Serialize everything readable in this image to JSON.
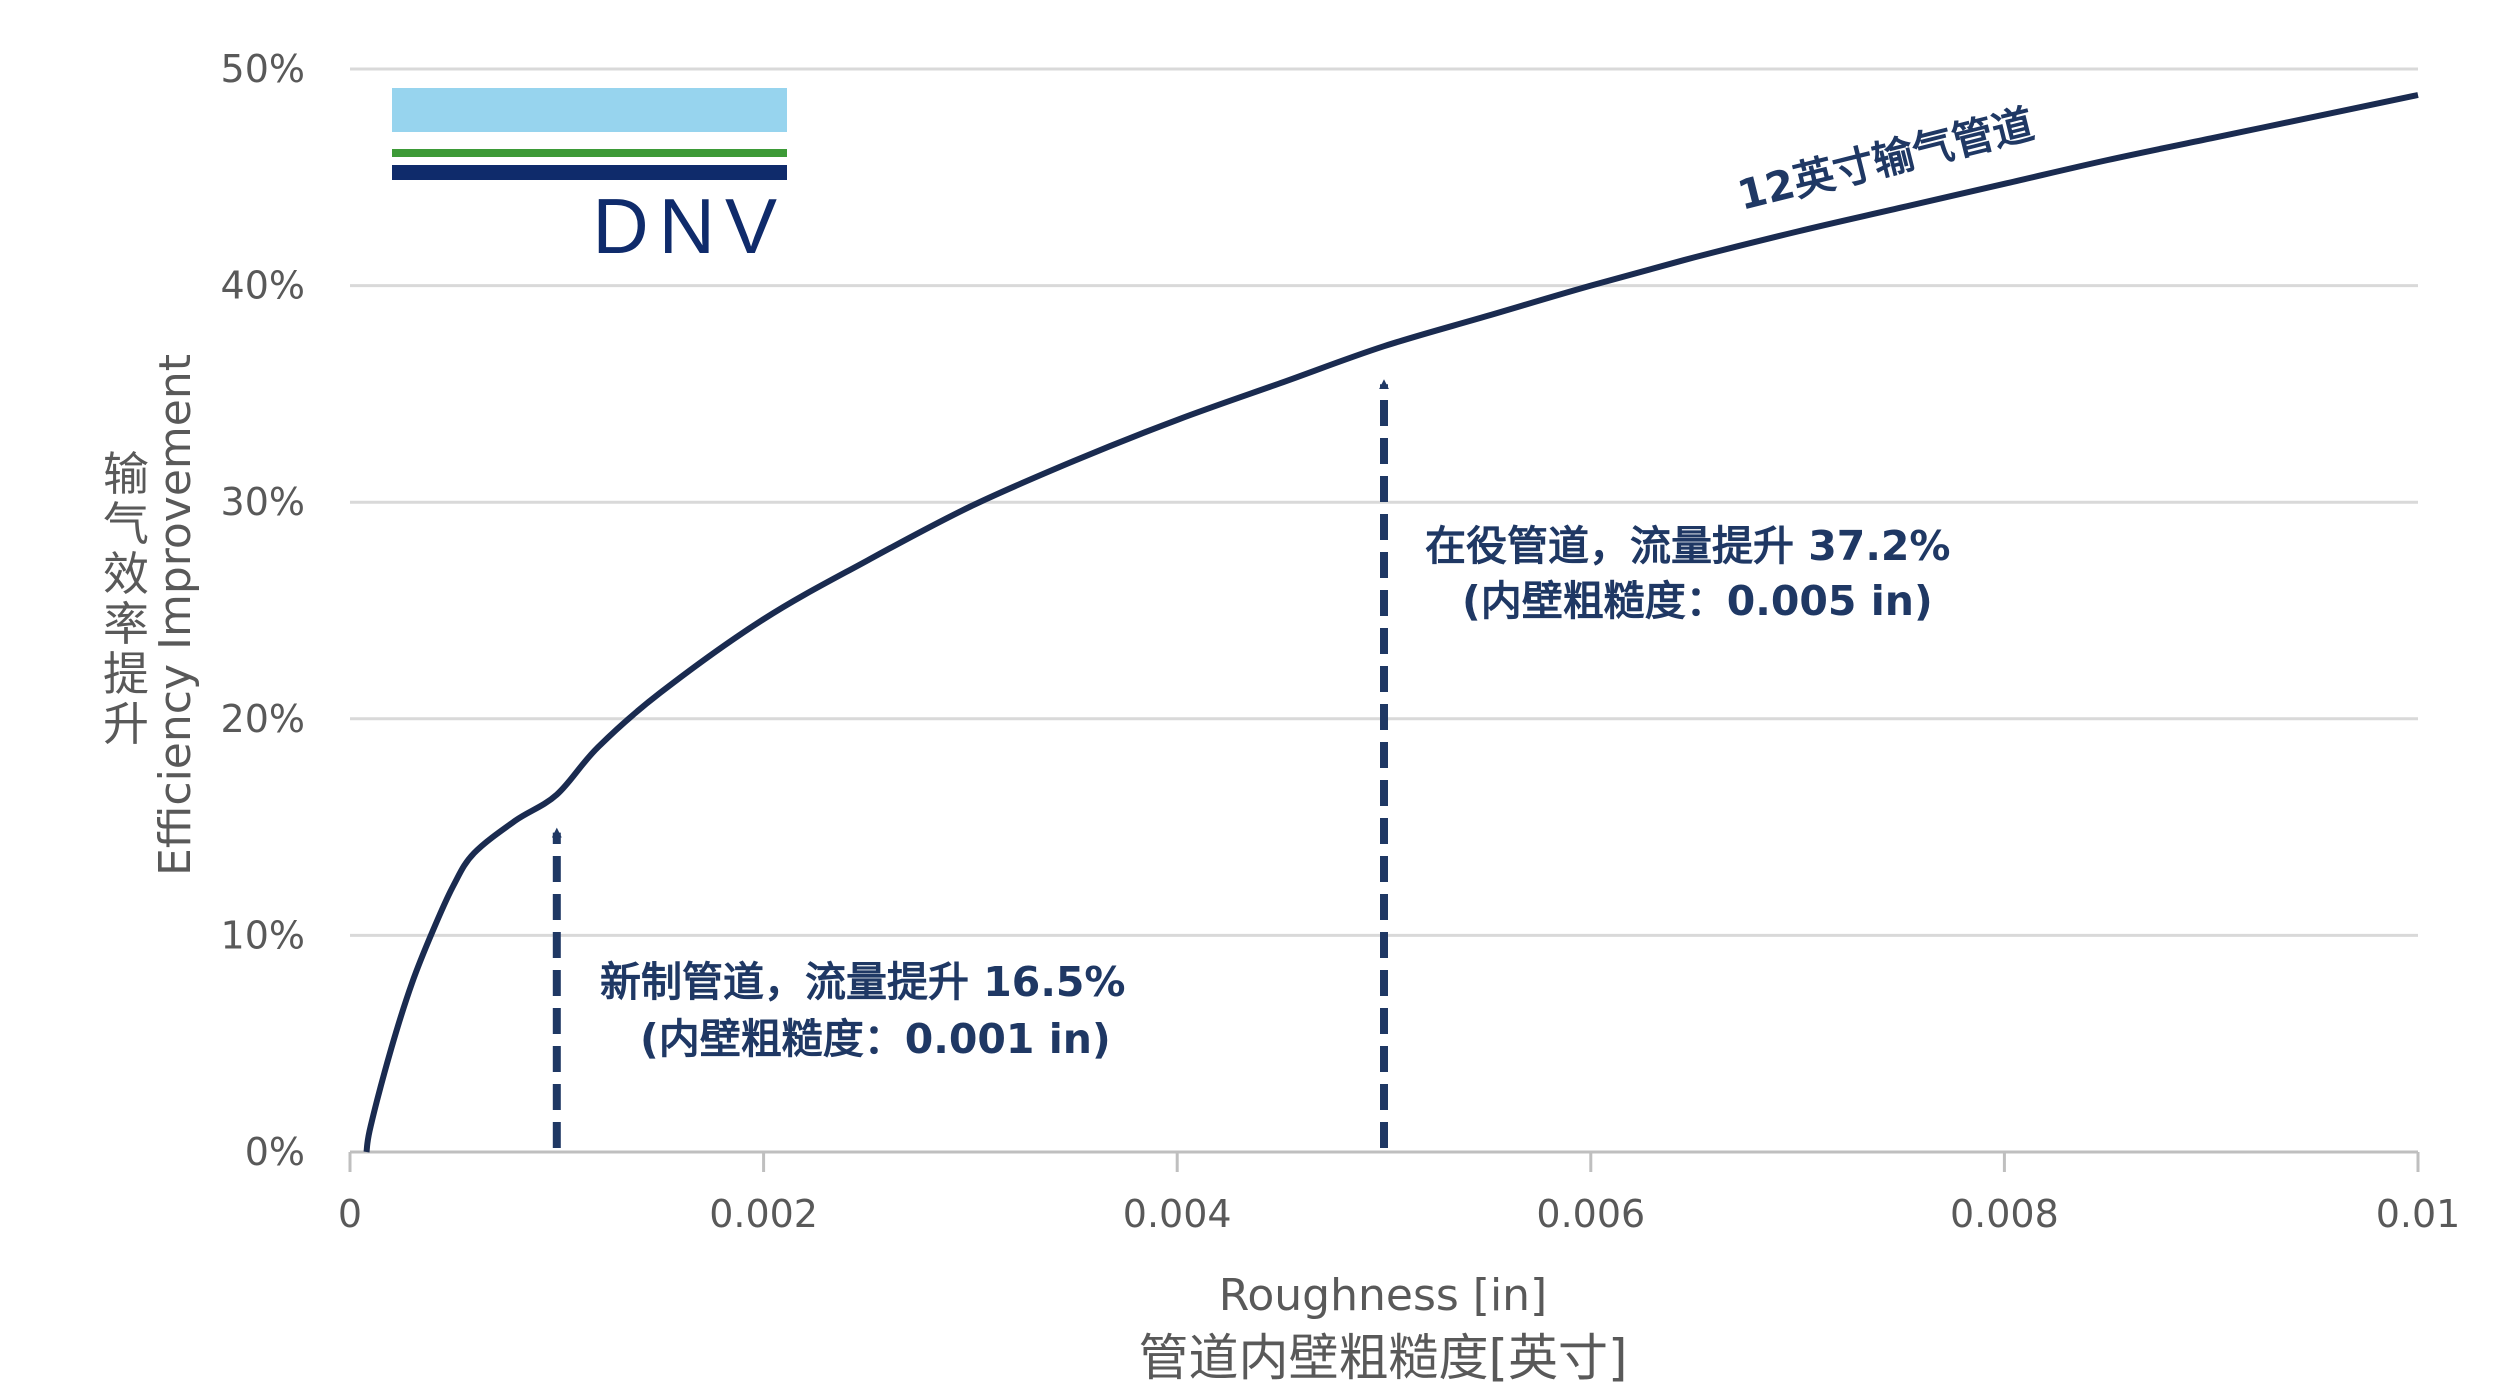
{
  "brand": {
    "logo_text": "DNV",
    "colors": {
      "light_blue": "#97d4ee",
      "green": "#3d9a37",
      "dark_blue": "#0f2b6b"
    }
  },
  "chart_data": {
    "type": "line",
    "xlabel": "Roughness [in]",
    "xlabel_cn": "管道内壁粗糙度[英寸]",
    "ylabel": "Efficiency Improvement",
    "ylabel_cn": "输气效率提升",
    "xlim": [
      0,
      0.01
    ],
    "ylim": [
      0,
      50
    ],
    "x_ticks": [
      "0",
      "0.002",
      "0.004",
      "0.006",
      "0.008",
      "0.01"
    ],
    "y_ticks": [
      "0%",
      "10%",
      "20%",
      "30%",
      "40%",
      "50%"
    ],
    "grid": true,
    "line_color": "#1a2b50",
    "series": [
      {
        "name": "12英寸输气管道",
        "x": [
          8e-05,
          0.0001,
          0.0002,
          0.0003,
          0.0004,
          0.0005,
          0.0006,
          0.0008,
          0.001,
          0.0012,
          0.0015,
          0.002,
          0.0025,
          0.003,
          0.0035,
          0.004,
          0.0045,
          0.005,
          0.0055,
          0.006,
          0.0065,
          0.007,
          0.0075,
          0.008,
          0.0085,
          0.009,
          0.0095,
          0.01
        ],
        "y": [
          0,
          1.2,
          4.8,
          7.8,
          10.2,
          12.3,
          13.8,
          15.3,
          16.5,
          18.7,
          21.2,
          24.6,
          27.3,
          29.8,
          31.9,
          33.8,
          35.5,
          37.2,
          38.6,
          40.0,
          41.3,
          42.5,
          43.6,
          44.7,
          45.8,
          46.8,
          47.8,
          48.8
        ]
      }
    ],
    "annotations": [
      {
        "x": 0.001,
        "y": 16.5,
        "text_line1": "新制管道，流量提升 16.5%",
        "text_line2": "(内壁粗糙度：0.001 in)"
      },
      {
        "x": 0.005,
        "y": 37.2,
        "text_line1": "在役管道，流量提升 37.2%",
        "text_line2": "(内壁粗糙度：0.005 in)"
      }
    ]
  }
}
